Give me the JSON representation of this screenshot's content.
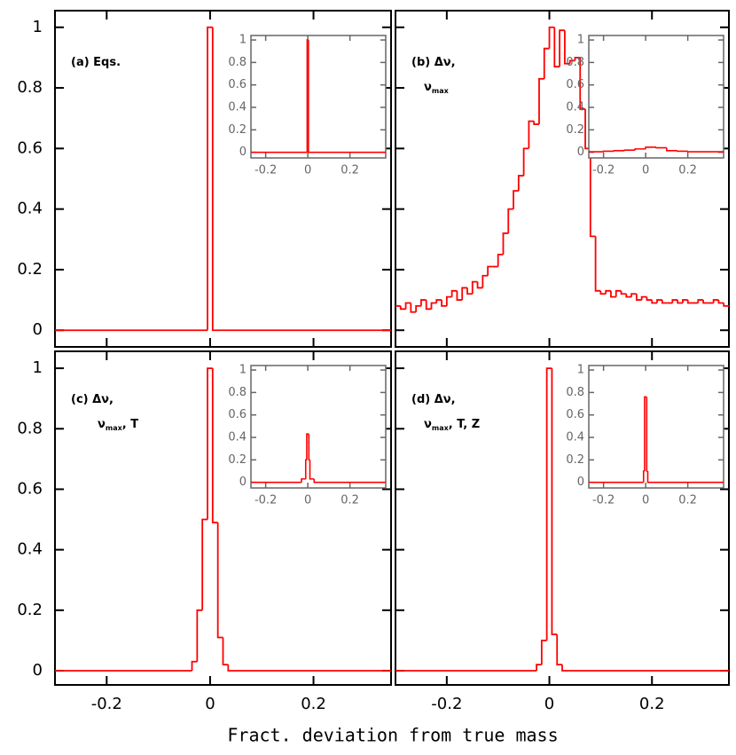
{
  "xlabel": "Fract. deviation from true mass",
  "chart_data": [
    {
      "type": "histogram",
      "color": "#ff0000",
      "label": [
        [
          {
            "t": "(a) Eqs."
          }
        ]
      ],
      "xlim": [
        -0.3,
        0.35
      ],
      "ylim": [
        -0.055,
        1.055
      ],
      "xticks": [
        -0.2,
        0,
        0.2
      ],
      "yticks": [
        0,
        0.2,
        0.4,
        0.6,
        0.8,
        1
      ],
      "xticklabels": false,
      "yticklabels": true,
      "bins": [
        -0.3,
        -0.005,
        0.005,
        0.35
      ],
      "counts": [
        0,
        1,
        0
      ],
      "inset": {
        "xlim": [
          -0.27,
          0.37
        ],
        "ylim": [
          -0.05,
          1.04
        ],
        "xticks": [
          -0.2,
          0,
          0.2
        ],
        "yticks": [
          0,
          0.2,
          0.4,
          0.6,
          0.8,
          1
        ],
        "bins": [
          -0.27,
          -0.003,
          0.003,
          0.37
        ],
        "counts": [
          0,
          1,
          0
        ]
      }
    },
    {
      "type": "histogram",
      "color": "#ff0000",
      "label": [
        [
          {
            "t": "(b) Δν,"
          }
        ],
        [
          {
            "t": "ν"
          },
          {
            "t": "max",
            "sub": true
          }
        ]
      ],
      "xlim": [
        -0.3,
        0.35
      ],
      "ylim": [
        -0.055,
        1.055
      ],
      "xticks": [
        -0.2,
        0,
        0.2
      ],
      "yticks": [
        0,
        0.2,
        0.4,
        0.6,
        0.8,
        1
      ],
      "xticklabels": false,
      "yticklabels": false,
      "bins": [
        -0.3,
        -0.29,
        -0.28,
        -0.27,
        -0.26,
        -0.25,
        -0.24,
        -0.23,
        -0.22,
        -0.21,
        -0.2,
        -0.19,
        -0.18,
        -0.17,
        -0.16,
        -0.15,
        -0.14,
        -0.13,
        -0.12,
        -0.11,
        -0.1,
        -0.09,
        -0.08,
        -0.07,
        -0.06,
        -0.05,
        -0.04,
        -0.03,
        -0.02,
        -0.01,
        0,
        0.01,
        0.02,
        0.03,
        0.04,
        0.05,
        0.06,
        0.07,
        0.08,
        0.09,
        0.1,
        0.11,
        0.12,
        0.13,
        0.14,
        0.15,
        0.16,
        0.17,
        0.18,
        0.19,
        0.2,
        0.21,
        0.22,
        0.23,
        0.24,
        0.25,
        0.26,
        0.27,
        0.28,
        0.29,
        0.3,
        0.31,
        0.32,
        0.33,
        0.34,
        0.35
      ],
      "counts": [
        0.08,
        0.07,
        0.09,
        0.06,
        0.08,
        0.1,
        0.07,
        0.09,
        0.1,
        0.08,
        0.11,
        0.13,
        0.1,
        0.14,
        0.12,
        0.16,
        0.14,
        0.18,
        0.21,
        0.21,
        0.25,
        0.32,
        0.4,
        0.46,
        0.51,
        0.6,
        0.69,
        0.68,
        0.83,
        0.93,
        1.0,
        0.87,
        0.99,
        0.88,
        0.89,
        0.9,
        0.73,
        0.6,
        0.31,
        0.13,
        0.12,
        0.13,
        0.11,
        0.13,
        0.12,
        0.11,
        0.12,
        0.1,
        0.11,
        0.1,
        0.09,
        0.1,
        0.09,
        0.09,
        0.1,
        0.09,
        0.1,
        0.09,
        0.09,
        0.1,
        0.09,
        0.09,
        0.1,
        0.09,
        0.08
      ],
      "inset": {
        "xlim": [
          -0.27,
          0.37
        ],
        "ylim": [
          -0.05,
          1.04
        ],
        "xticks": [
          -0.2,
          0,
          0.2
        ],
        "yticks": [
          0,
          0.2,
          0.4,
          0.6,
          0.8,
          1
        ],
        "bins": [
          -0.27,
          -0.2,
          -0.15,
          -0.1,
          -0.05,
          0,
          0.05,
          0.1,
          0.15,
          0.2,
          0.37
        ],
        "counts": [
          0.005,
          0.01,
          0.015,
          0.02,
          0.03,
          0.045,
          0.04,
          0.015,
          0.01,
          0.005
        ]
      }
    },
    {
      "type": "histogram",
      "color": "#ff0000",
      "label": [
        [
          {
            "t": "(c) Δν,"
          }
        ],
        [
          {
            "t": "ν"
          },
          {
            "t": "max",
            "sub": true
          },
          {
            "t": ", T"
          }
        ]
      ],
      "xlim": [
        -0.3,
        0.35
      ],
      "ylim": [
        -0.047,
        1.056
      ],
      "xticks": [
        -0.2,
        0,
        0.2
      ],
      "yticks": [
        0,
        0.2,
        0.4,
        0.6,
        0.8,
        1
      ],
      "xticklabels": true,
      "yticklabels": true,
      "bins": [
        -0.3,
        -0.035,
        -0.025,
        -0.015,
        -0.005,
        0.005,
        0.015,
        0.025,
        0.035,
        0.35
      ],
      "counts": [
        0,
        0.03,
        0.2,
        0.5,
        1.0,
        0.49,
        0.11,
        0.02,
        0
      ],
      "inset": {
        "xlim": [
          -0.27,
          0.37
        ],
        "ylim": [
          -0.05,
          1.04
        ],
        "xticks": [
          -0.2,
          0,
          0.2
        ],
        "yticks": [
          0,
          0.2,
          0.4,
          0.6,
          0.8,
          1
        ],
        "bins": [
          -0.27,
          -0.03,
          -0.01,
          -0.005,
          0.005,
          0.01,
          0.03,
          0.37
        ],
        "counts": [
          0,
          0.03,
          0.2,
          0.43,
          0.2,
          0.03,
          0
        ]
      }
    },
    {
      "type": "histogram",
      "color": "#ff0000",
      "label": [
        [
          {
            "t": "(d) Δν,"
          }
        ],
        [
          {
            "t": "ν"
          },
          {
            "t": "max",
            "sub": true
          },
          {
            "t": ", T, Z"
          }
        ]
      ],
      "xlim": [
        -0.3,
        0.35
      ],
      "ylim": [
        -0.047,
        1.056
      ],
      "xticks": [
        -0.2,
        0,
        0.2
      ],
      "yticks": [
        0,
        0.2,
        0.4,
        0.6,
        0.8,
        1
      ],
      "xticklabels": true,
      "yticklabels": false,
      "bins": [
        -0.3,
        -0.025,
        -0.015,
        -0.005,
        0.005,
        0.015,
        0.025,
        0.35
      ],
      "counts": [
        0,
        0.02,
        0.1,
        1.0,
        0.12,
        0.02,
        0
      ],
      "inset": {
        "xlim": [
          -0.27,
          0.37
        ],
        "ylim": [
          -0.05,
          1.04
        ],
        "xticks": [
          -0.2,
          0,
          0.2
        ],
        "yticks": [
          0,
          0.2,
          0.4,
          0.6,
          0.8,
          1
        ],
        "bins": [
          -0.27,
          -0.01,
          -0.005,
          0.005,
          0.01,
          0.37
        ],
        "counts": [
          0,
          0.1,
          0.76,
          0.1,
          0
        ]
      }
    }
  ]
}
